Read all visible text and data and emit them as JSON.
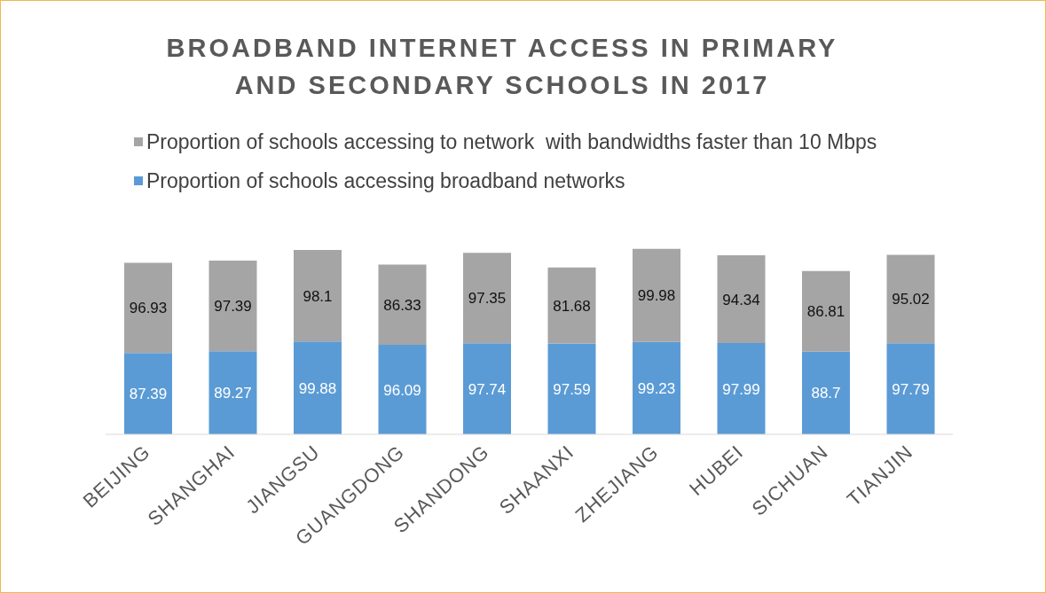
{
  "chart_data": {
    "type": "bar",
    "title": "BROADBAND INTERNET ACCESS IN PRIMARY AND SECONDARY SCHOOLS IN 2017",
    "categories": [
      "BEIJING",
      "SHANGHAI",
      "JIANGSU",
      "GUANGDONG",
      "SHANDONG",
      "SHAANXI",
      "ZHEJIANG",
      "HUBEI",
      "SICHUAN",
      "TIANJIN"
    ],
    "series": [
      {
        "name": "Proportion of schools accessing broadband networks",
        "color": "#5b9bd5",
        "values": [
          87.39,
          89.27,
          99.88,
          96.09,
          97.74,
          97.59,
          99.23,
          97.99,
          88.7,
          97.79
        ]
      },
      {
        "name": "Proportion of schools accessing to network  with bandwidths faster than 10 Mbps",
        "color": "#a5a5a5",
        "values": [
          96.93,
          97.39,
          98.1,
          86.33,
          97.35,
          81.68,
          99.98,
          94.34,
          86.81,
          95.02
        ]
      }
    ],
    "stacked": true,
    "data_labels": true,
    "legend": "top"
  }
}
